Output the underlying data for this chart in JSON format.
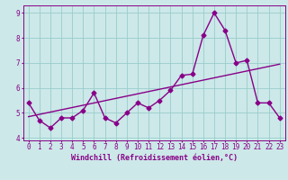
{
  "xlabel": "Windchill (Refroidissement éolien,°C)",
  "ylabel": "",
  "bg_color": "#cce8e8",
  "line_color": "#880088",
  "grid_color": "#99cccc",
  "x_data": [
    0,
    1,
    2,
    3,
    4,
    5,
    6,
    7,
    8,
    9,
    10,
    11,
    12,
    13,
    14,
    15,
    16,
    17,
    18,
    19,
    20,
    21,
    22,
    23
  ],
  "y_data": [
    5.4,
    4.7,
    4.4,
    4.8,
    4.8,
    5.1,
    5.8,
    4.8,
    4.6,
    5.0,
    5.4,
    5.2,
    5.5,
    5.9,
    6.5,
    6.55,
    8.1,
    9.0,
    8.3,
    7.0,
    7.1,
    5.4,
    5.4,
    4.8
  ],
  "trend_x": [
    0,
    23
  ],
  "trend_y": [
    4.85,
    6.95
  ],
  "ylim": [
    3.9,
    9.3
  ],
  "xlim": [
    -0.5,
    23.5
  ],
  "xticks": [
    0,
    1,
    2,
    3,
    4,
    5,
    6,
    7,
    8,
    9,
    10,
    11,
    12,
    13,
    14,
    15,
    16,
    17,
    18,
    19,
    20,
    21,
    22,
    23
  ],
  "yticks": [
    4,
    5,
    6,
    7,
    8,
    9
  ],
  "marker_size": 2.5,
  "line_width": 1.0,
  "xlabel_fontsize": 6.0,
  "tick_fontsize": 5.5
}
